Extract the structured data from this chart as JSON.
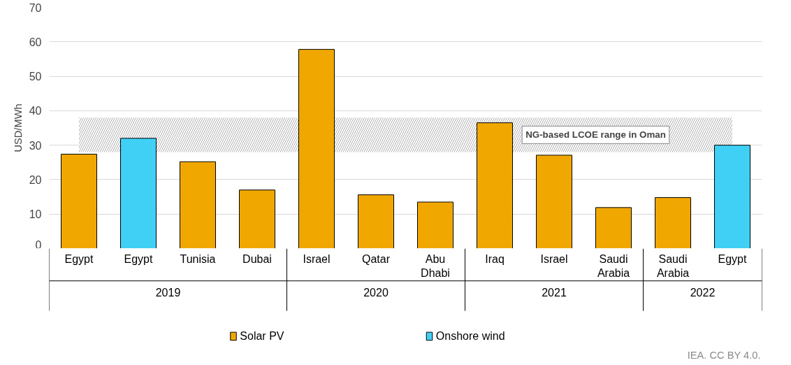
{
  "chart_data": {
    "type": "bar",
    "ylabel": "USD/MWh",
    "categories": [
      "Egypt",
      "Egypt",
      "Tunisia",
      "Dubai",
      "Israel",
      "Qatar",
      "Abu\nDhabi",
      "Iraq",
      "Israel",
      "Saudi\nArabia",
      "Saudi\nArabia",
      "Egypt"
    ],
    "series": [
      {
        "name": "Solar PV",
        "color": "#f0a800",
        "values": [
          27.4,
          null,
          25.2,
          17,
          57.8,
          15.6,
          13.5,
          36.5,
          27.1,
          11.9,
          14.8,
          null
        ]
      },
      {
        "name": "Onshore wind",
        "color": "#40cff5",
        "values": [
          null,
          32,
          null,
          null,
          null,
          null,
          null,
          null,
          null,
          null,
          null,
          30
        ]
      }
    ],
    "ylim": [
      0,
      70
    ],
    "yticks": [
      0,
      10,
      20,
      30,
      40,
      50,
      60,
      70
    ],
    "grid": "y",
    "legend": "bottom",
    "bands": [
      {
        "axis": "y",
        "from": 28,
        "to": 38,
        "label": "NG-based LCOE range in Oman",
        "color": "#b0b0b0"
      }
    ],
    "annotations": [
      "2019",
      "2020",
      "2021",
      "2022",
      "IEA. CC BY 4.0."
    ]
  }
}
